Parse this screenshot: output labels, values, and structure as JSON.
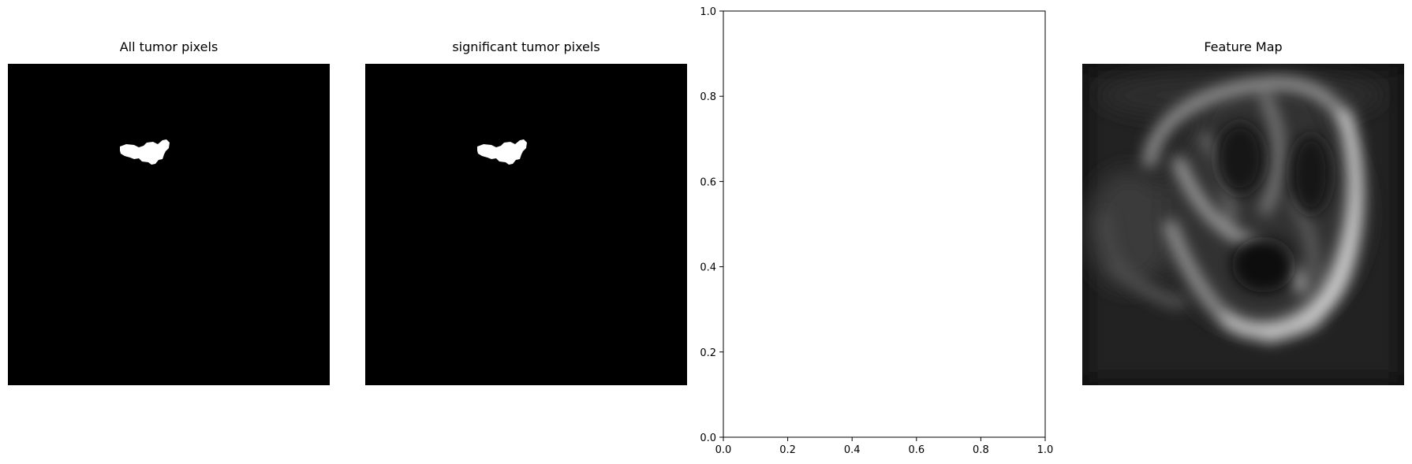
{
  "panels": {
    "panel1": {
      "title": "All tumor pixels"
    },
    "panel2": {
      "title": "significant tumor pixels"
    },
    "panel3": {
      "title": ""
    },
    "panel4": {
      "title": "Feature Map"
    }
  },
  "chart_data": [
    {
      "type": "image",
      "title": "All tumor pixels",
      "colormap": "gray",
      "axes": "off"
    },
    {
      "type": "image",
      "title": "significant tumor pixels",
      "colormap": "gray",
      "axes": "off"
    },
    {
      "type": "line",
      "title": "",
      "xlabel": "",
      "ylabel": "",
      "xlim": [
        0.0,
        1.0
      ],
      "ylim": [
        0.0,
        1.0
      ],
      "xticks": [
        "0.0",
        "0.2",
        "0.4",
        "0.6",
        "0.8",
        "1.0"
      ],
      "yticks": [
        "0.0",
        "0.2",
        "0.4",
        "0.6",
        "0.8",
        "1.0"
      ],
      "series": []
    },
    {
      "type": "image",
      "title": "Feature Map",
      "colormap": "gray",
      "axes": "off"
    }
  ]
}
